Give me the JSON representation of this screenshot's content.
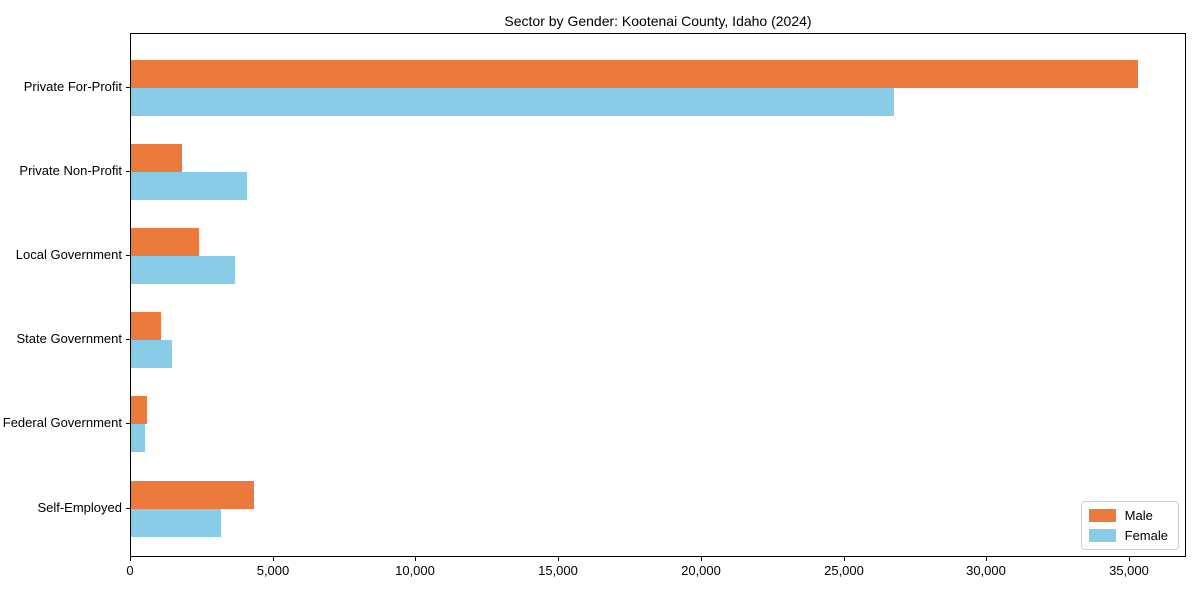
{
  "chart_data": {
    "type": "bar",
    "orientation": "horizontal",
    "title": "Sector by Gender: Kootenai County, Idaho (2024)",
    "categories": [
      "Private For-Profit",
      "Private Non-Profit",
      "Local Government",
      "State Government",
      "Federal Government",
      "Self-Employed"
    ],
    "series": [
      {
        "name": "Male",
        "color": "#EC7A3C",
        "values": [
          35300,
          1800,
          2400,
          1050,
          550,
          4300
        ]
      },
      {
        "name": "Female",
        "color": "#89CCE8",
        "values": [
          26750,
          4050,
          3650,
          1450,
          500,
          3150
        ]
      }
    ],
    "xlabel": "",
    "ylabel": "",
    "xlim": [
      0,
      37000
    ],
    "xticks": [
      0,
      5000,
      10000,
      15000,
      20000,
      25000,
      30000,
      35000
    ],
    "grid": false,
    "legend_position": "lower right"
  }
}
